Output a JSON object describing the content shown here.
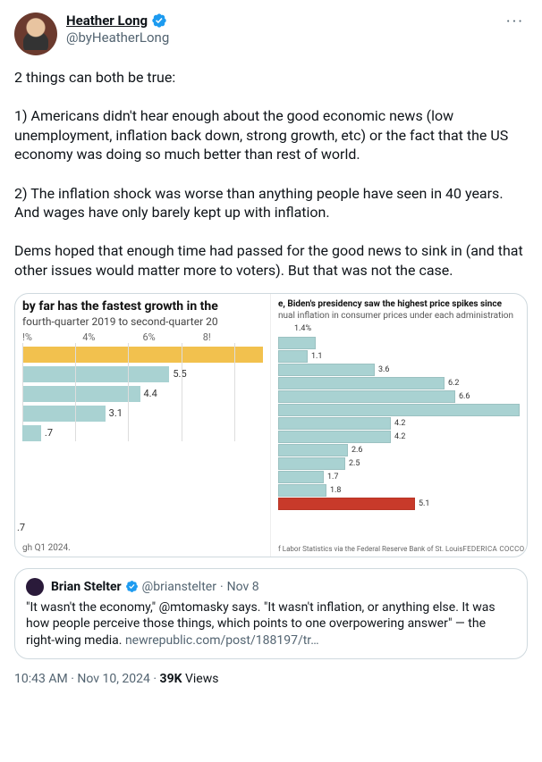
{
  "header": {
    "display_name": "Heather Long",
    "handle": "@byHeatherLong",
    "more_glyph": "···"
  },
  "body": {
    "text": "2 things can both be true:\n\n1) Americans didn't hear enough about the good economic news (low unemployment, inflation back down, strong growth, etc) or the fact that the US economy was doing so much better than rest of world.\n\n2) The inflation shock was worse than anything people have seen in 40 years. And wages have only barely kept up with inflation.\n\nDems hoped that enough time had passed for the good news to sink in (and that other issues would matter more to voters). But that was not the case."
  },
  "chart_left": {
    "type": "bar",
    "title": "by far has the fastest growth in the",
    "subtitle": " fourth-quarter 2019 to second-quarter 20",
    "footer": "gh Q1 2024.",
    "axis_ticks": [
      "!%",
      "4%",
      "6%",
      "8!"
    ],
    "bar_color": "#a9d2d2",
    "highlight_color": "#f2c14e",
    "background_color": "#ffffff",
    "grid_color": "#dddddd",
    "x_max": 9.0,
    "bars": [
      {
        "value": 9.0,
        "label": "",
        "highlight": true
      },
      {
        "value": 5.5,
        "label": "5.5",
        "highlight": false
      },
      {
        "value": 4.4,
        "label": "4.4",
        "highlight": false
      },
      {
        "value": 3.1,
        "label": "3.1",
        "highlight": false
      },
      {
        "value": 0.7,
        "label": ".7",
        "highlight": false,
        "y_label": ".7"
      }
    ],
    "grid_positions_pct": [
      0,
      22,
      44,
      66,
      88
    ]
  },
  "chart_right": {
    "type": "bar",
    "title": "e, Biden's presidency saw the highest price spikes since",
    "subtitle": "nual inflation in consumer prices under each administration",
    "source_left": "f Labor Statistics via the Federal Reserve Bank of St. Louis",
    "source_right": "FEDERICA COCCO / THE WASH",
    "bar_color": "#a9d2d2",
    "highlight_color": "#c83a2a",
    "background_color": "#ffffff",
    "x_max": 9.0,
    "top_label": "1.4%",
    "bars": [
      {
        "value": 1.4,
        "label": ""
      },
      {
        "value": 1.1,
        "label": "1.1"
      },
      {
        "value": 3.6,
        "label": "3.6"
      },
      {
        "value": 6.2,
        "label": "6.2"
      },
      {
        "value": 6.6,
        "label": "6.6"
      },
      {
        "value": 9.0,
        "label": ""
      },
      {
        "value": 4.2,
        "label": "4.2"
      },
      {
        "value": 4.2,
        "label": "4.2"
      },
      {
        "value": 2.6,
        "label": "2.6"
      },
      {
        "value": 2.5,
        "label": "2.5"
      },
      {
        "value": 1.7,
        "label": "1.7"
      },
      {
        "value": 1.8,
        "label": "1.8"
      },
      {
        "value": 5.1,
        "label": "5.1",
        "highlight": true
      }
    ]
  },
  "quote": {
    "display_name": "Brian Stelter",
    "handle": "@brianstelter",
    "date": "Nov 8",
    "sep": "·",
    "body_prefix": "\"It wasn't the economy,\" @mtomasky says. \"It wasn't inflation, or anything else. It was how people perceive those things, which points to one overpowering answer\" — the right-wing media. ",
    "link": "newrepublic.com/post/188197/tr…"
  },
  "meta": {
    "time": "10:43 AM",
    "sep": "·",
    "date": "Nov 10, 2024",
    "views_count": "39K",
    "views_label": " Views"
  },
  "verified_color": "#1d9bf0"
}
